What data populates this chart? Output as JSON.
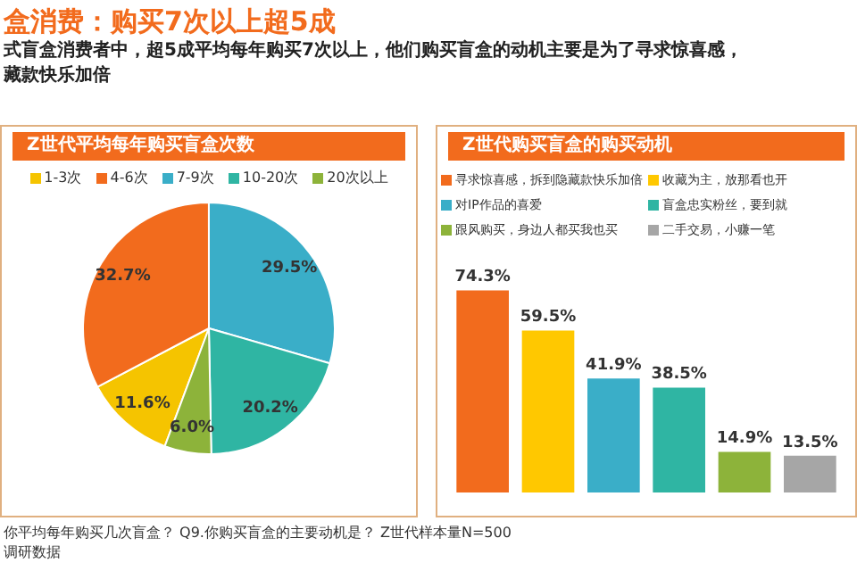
{
  "chart_data": [
    {
      "type": "pie",
      "title": "Z世代平均每年购买盲盒次数",
      "categories": [
        "1-3次",
        "4-6次",
        "7-9次",
        "10-20次",
        "20次以上"
      ],
      "values": [
        11.6,
        32.7,
        29.5,
        20.2,
        6.0
      ],
      "value_labels": [
        "11.6%",
        "32.7%",
        "29.5%",
        "20.2%",
        "6.0%"
      ],
      "colors": [
        "#f5c400",
        "#f26b1d",
        "#3aaec8",
        "#2fb5a3",
        "#8db33a"
      ],
      "legend": "top",
      "annotations": [
        "盒消费：购买7次以上超5成",
        "式盲盒消费者中，超5成平均每年购买7次以上，他们购买盲盒的动机主要是为了寻求惊喜感，",
        "藏款快乐加倍"
      ]
    },
    {
      "type": "bar",
      "title": "Z世代购买盲盒的购买动机",
      "categories": [
        null
      ],
      "series": [
        {
          "name": "寻求惊喜感，拆到隐藏款快乐加倍",
          "color": "#f26b1d",
          "values": [
            74.3
          ],
          "value_labels": [
            "74.3%"
          ]
        },
        {
          "name": "收藏为主，放那看也开",
          "color": "#ffc800",
          "values": [
            59.5
          ],
          "value_labels": [
            "59.5%"
          ]
        },
        {
          "name": "对IP作品的喜爱",
          "color": "#3aaec8",
          "values": [
            41.9
          ],
          "value_labels": [
            "41.9%"
          ]
        },
        {
          "name": "盲盒忠实粉丝，要到就",
          "color": "#2fb5a3",
          "values": [
            38.5
          ],
          "value_labels": [
            "38.5%"
          ]
        },
        {
          "name": "跟风购买，身边人都买我也买",
          "color": "#8db33a",
          "values": [
            14.9
          ],
          "value_labels": [
            "14.9%"
          ]
        },
        {
          "name": "二手交易，小赚一笔",
          "color": "#a6a6a6",
          "values": [
            13.5
          ],
          "value_labels": [
            "13.5%"
          ]
        }
      ],
      "legend": "top",
      "tick_labels": false,
      "annotations": [
        "你平均每年购买几次盲盒？ Q9.你购买盲盒的主要动机是？ Z世代样本量N=500",
        "调研数据"
      ]
    }
  ]
}
